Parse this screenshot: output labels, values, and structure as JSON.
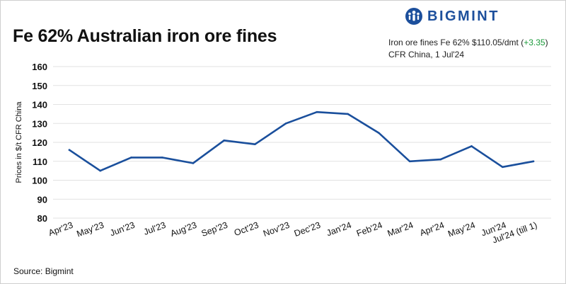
{
  "title": "Fe 62% Australian iron ore fines",
  "brand": {
    "name": "BIGMINT",
    "color": "#1c4f9c",
    "icon": "people-logo-icon"
  },
  "info": {
    "line1_prefix": "Iron ore fines Fe 62% $110.05/dmt (",
    "change": "+3.35",
    "line1_suffix": ")",
    "line2": "CFR  China, 1 Jul'24",
    "change_color": "#1a9a3a"
  },
  "source": "Source: Bigmint",
  "chart_data": {
    "type": "line",
    "title": "Fe 62% Australian iron ore fines",
    "xlabel": "",
    "ylabel": "Prices in $/t CFR China",
    "categories": [
      "Apr'23",
      "May'23",
      "Jun'23",
      "Jul'23",
      "Aug'23",
      "Sep'23",
      "Oct'23",
      "Nov'23",
      "Dec'23",
      "Jan'24",
      "Feb'24",
      "Mar'24",
      "Apr'24",
      "May'24",
      "Jun'24",
      "Jul'24 (till 1)"
    ],
    "series": [
      {
        "values": [
          116,
          105,
          112,
          112,
          109,
          121,
          119,
          130,
          136,
          135,
          125,
          110,
          111,
          118,
          107,
          110
        ],
        "color": "#1a4f9c"
      }
    ],
    "ylim": [
      80,
      160
    ],
    "yticks": [
      80,
      90,
      100,
      110,
      120,
      130,
      140,
      150,
      160
    ],
    "grid": true,
    "legend": "none"
  }
}
